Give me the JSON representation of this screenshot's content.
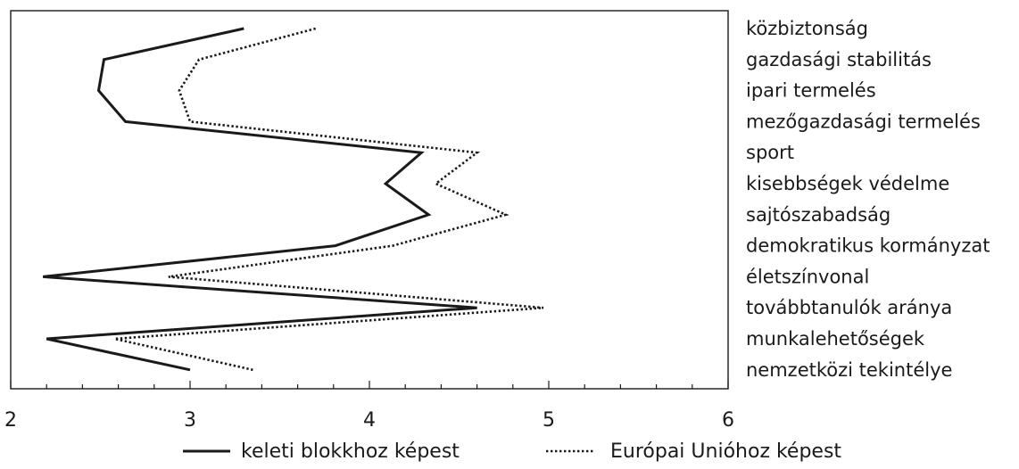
{
  "chart_data": {
    "type": "line",
    "orientation": "horizontal-values",
    "categories": [
      "közbiztonság",
      "gazdasági stabilitás",
      "ipari termelés",
      "mezőgazdasági termelés",
      "sport",
      "kisebbségek védelme",
      "sajtószabadság",
      "demokratikus kormányzat",
      "életszínvonal",
      "továbbtanulók aránya",
      "munkalehetőségek",
      "nemzetközi tekintélye"
    ],
    "series": [
      {
        "name": "keleti blokkhoz képest",
        "style": "solid",
        "color": "#1a1a1a",
        "values": [
          3.3,
          2.52,
          2.49,
          2.64,
          4.29,
          4.09,
          4.33,
          3.81,
          2.18,
          4.6,
          2.2,
          3.0
        ]
      },
      {
        "name": "Európai Unióhoz képest",
        "style": "dotted",
        "color": "#1a1a1a",
        "values": [
          3.7,
          3.05,
          2.94,
          3.0,
          4.6,
          4.37,
          4.76,
          4.13,
          2.88,
          4.97,
          2.58,
          3.35
        ]
      }
    ],
    "x_ticks": [
      "2",
      "3",
      "4",
      "5",
      "6"
    ],
    "xlim": [
      2,
      6
    ],
    "minor_ticks_per_major": 5,
    "grid": false,
    "legend_position": "bottom"
  }
}
